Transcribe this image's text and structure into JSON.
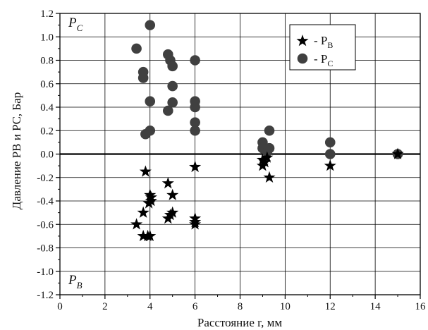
{
  "chart_data": {
    "type": "scatter",
    "title": "",
    "xlabel": "Расстояние r, мм",
    "ylabel": "Давление PB и PC, Бар",
    "xlim": [
      0,
      16
    ],
    "ylim": [
      -1.2,
      1.2
    ],
    "x_ticks": [
      "0",
      "2",
      "4",
      "6",
      "8",
      "10",
      "12",
      "14",
      "16"
    ],
    "y_ticks": [
      "-1.2",
      "-1.0",
      "-0.8",
      "-0.6",
      "-0.4",
      "-0.2",
      "0.0",
      "0.2",
      "0.4",
      "0.6",
      "0.8",
      "1.0",
      "1.2"
    ],
    "grid": true,
    "legend_position": "top-right",
    "region_labels": {
      "top": {
        "main": "P",
        "sub": "C"
      },
      "bottom": {
        "main": "P",
        "sub": "B"
      }
    },
    "series": [
      {
        "name": "- PB",
        "legend_main": "- P",
        "legend_sub": "B",
        "marker": "star",
        "color": "#000000",
        "points": [
          [
            3.4,
            -0.6
          ],
          [
            3.7,
            -0.5
          ],
          [
            3.7,
            -0.7
          ],
          [
            3.8,
            -0.15
          ],
          [
            3.9,
            -0.7
          ],
          [
            3.95,
            -0.42
          ],
          [
            4.0,
            -0.7
          ],
          [
            4.0,
            -0.35
          ],
          [
            4.05,
            -0.4
          ],
          [
            4.05,
            -0.37
          ],
          [
            4.8,
            -0.25
          ],
          [
            4.8,
            -0.55
          ],
          [
            4.9,
            -0.52
          ],
          [
            5.0,
            -0.5
          ],
          [
            5.0,
            -0.35
          ],
          [
            6.0,
            -0.11
          ],
          [
            6.0,
            -0.55
          ],
          [
            6.0,
            -0.58
          ],
          [
            6.0,
            -0.6
          ],
          [
            9.0,
            -0.05
          ],
          [
            9.0,
            -0.1
          ],
          [
            9.1,
            -0.07
          ],
          [
            9.2,
            -0.03
          ],
          [
            9.3,
            -0.2
          ],
          [
            12.0,
            -0.1
          ],
          [
            15.0,
            0.0
          ]
        ]
      },
      {
        "name": "- PC",
        "legend_main": "- P",
        "legend_sub": "C",
        "marker": "circle",
        "color": "#404040",
        "points": [
          [
            3.4,
            0.9
          ],
          [
            3.7,
            0.7
          ],
          [
            3.7,
            0.65
          ],
          [
            3.8,
            0.17
          ],
          [
            4.0,
            1.1
          ],
          [
            4.0,
            0.45
          ],
          [
            4.0,
            0.2
          ],
          [
            4.8,
            0.85
          ],
          [
            4.8,
            0.37
          ],
          [
            4.9,
            0.8
          ],
          [
            5.0,
            0.75
          ],
          [
            5.0,
            0.58
          ],
          [
            5.0,
            0.44
          ],
          [
            6.0,
            0.8
          ],
          [
            6.0,
            0.45
          ],
          [
            6.0,
            0.4
          ],
          [
            6.0,
            0.27
          ],
          [
            6.0,
            0.2
          ],
          [
            9.0,
            0.1
          ],
          [
            9.0,
            0.05
          ],
          [
            9.2,
            0.02
          ],
          [
            9.3,
            0.05
          ],
          [
            9.3,
            0.2
          ],
          [
            12.0,
            0.1
          ],
          [
            12.0,
            0.0
          ],
          [
            15.0,
            0.0
          ]
        ]
      }
    ]
  }
}
